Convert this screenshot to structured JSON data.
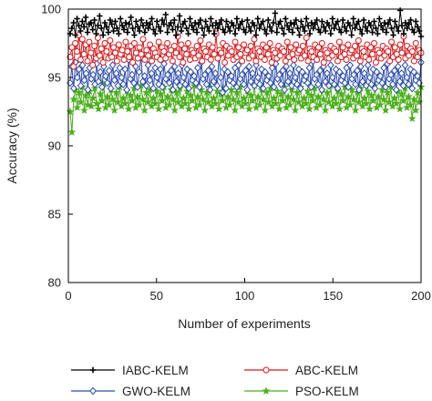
{
  "chart_data": {
    "type": "line",
    "title": "",
    "xlabel": "Number of experiments",
    "ylabel": "Accuracy (%)",
    "xlim": [
      0,
      200
    ],
    "ylim": [
      80,
      100
    ],
    "xticks": [
      0,
      50,
      100,
      150,
      200
    ],
    "yticks": [
      80,
      85,
      90,
      95,
      100
    ],
    "grid": false,
    "legend_position": "bottom",
    "x_start": 1,
    "x_end": 200,
    "series": [
      {
        "name": "IABC-KELM",
        "color": "#000000",
        "marker": "plus",
        "values": [
          98.2,
          98.6,
          99.0,
          98.1,
          99.3,
          98.8,
          98.4,
          99.1,
          98.7,
          99.4,
          98.3,
          98.9,
          99.0,
          98.5,
          99.2,
          98.2,
          98.8,
          99.5,
          98.6,
          98.1,
          99.0,
          98.7,
          98.3,
          99.2,
          98.9,
          98.4,
          99.1,
          98.6,
          98.2,
          99.3,
          98.8,
          98.5,
          99.0,
          98.3,
          98.9,
          99.4,
          98.6,
          98.1,
          99.1,
          98.7,
          98.4,
          99.2,
          98.8,
          98.3,
          99.0,
          98.6,
          98.9,
          99.3,
          98.5,
          98.2,
          99.1,
          98.7,
          98.4,
          99.2,
          98.9,
          99.6,
          98.3,
          98.8,
          99.0,
          98.5,
          99.2,
          98.1,
          98.7,
          99.5,
          98.4,
          98.9,
          99.1,
          98.6,
          98.2,
          99.3,
          98.8,
          98.5,
          99.0,
          98.3,
          98.9,
          99.2,
          98.6,
          98.1,
          99.1,
          98.7,
          98.4,
          99.3,
          98.8,
          98.2,
          99.0,
          98.6,
          98.9,
          99.2,
          98.5,
          98.3,
          99.1,
          98.7,
          98.4,
          99.0,
          98.8,
          98.2,
          99.3,
          98.6,
          98.9,
          99.1,
          98.5,
          98.3,
          99.2,
          98.7,
          98.4,
          99.0,
          98.8,
          98.1,
          99.3,
          98.6,
          98.9,
          99.1,
          98.5,
          98.2,
          99.2,
          98.7,
          98.4,
          99.0,
          99.7,
          98.3,
          98.9,
          99.1,
          98.6,
          98.2,
          99.3,
          98.8,
          98.5,
          99.0,
          98.3,
          98.9,
          99.2,
          98.6,
          98.1,
          99.1,
          98.7,
          98.4,
          99.3,
          98.8,
          98.2,
          99.0,
          98.6,
          98.9,
          99.2,
          98.5,
          98.3,
          99.1,
          98.7,
          98.4,
          99.0,
          98.8,
          98.2,
          99.3,
          98.6,
          98.9,
          99.1,
          98.5,
          98.3,
          99.2,
          98.7,
          98.4,
          99.0,
          98.8,
          98.1,
          99.3,
          98.6,
          98.9,
          99.1,
          98.5,
          98.2,
          99.2,
          98.7,
          98.4,
          99.0,
          98.8,
          98.3,
          99.1,
          98.6,
          98.2,
          99.3,
          98.8,
          98.5,
          99.0,
          98.3,
          98.9,
          99.2,
          98.6,
          98.1,
          99.1,
          98.7,
          98.4,
          99.9,
          98.8,
          98.2,
          99.0,
          98.6,
          98.9,
          99.2,
          98.5,
          98.3,
          99.1,
          98.7,
          98.4,
          98.0
        ]
      },
      {
        "name": "ABC-KELM",
        "color": "#d7191c",
        "marker": "circle",
        "values": [
          96.5,
          97.2,
          95.8,
          97.5,
          96.9,
          98.1,
          96.3,
          97.8,
          96.7,
          97.4,
          96.2,
          97.6,
          96.8,
          95.9,
          97.3,
          96.4,
          97.9,
          96.6,
          97.1,
          96.1,
          97.5,
          96.9,
          96.4,
          97.7,
          96.5,
          97.2,
          96.8,
          96.2,
          97.4,
          96.7,
          97.0,
          96.3,
          97.6,
          96.9,
          96.5,
          97.3,
          96.1,
          97.5,
          96.8,
          96.4,
          97.2,
          96.7,
          97.8,
          96.3,
          97.0,
          96.6,
          97.4,
          96.2,
          97.1,
          96.8,
          96.5,
          97.6,
          96.3,
          97.2,
          96.9,
          96.4,
          97.5,
          96.7,
          97.0,
          96.2,
          97.3,
          96.8,
          98.0,
          96.5,
          97.4,
          96.1,
          97.1,
          96.7,
          97.5,
          96.3,
          97.0,
          96.8,
          96.4,
          97.3,
          96.6,
          97.7,
          96.2,
          97.1,
          96.9,
          96.5,
          97.4,
          96.3,
          97.2,
          96.7,
          98.2,
          96.4,
          97.0,
          96.8,
          97.5,
          96.1,
          97.3,
          96.6,
          97.1,
          96.9,
          96.3,
          97.6,
          96.5,
          97.2,
          96.7,
          96.2,
          97.4,
          96.8,
          97.0,
          96.4,
          97.3,
          96.6,
          97.8,
          96.2,
          97.1,
          96.9,
          96.5,
          97.4,
          96.3,
          97.2,
          96.7,
          97.5,
          96.1,
          97.0,
          96.8,
          96.4,
          97.3,
          96.6,
          97.1,
          96.9,
          96.2,
          97.6,
          96.5,
          97.2,
          96.7,
          96.3,
          97.4,
          96.8,
          97.0,
          96.4,
          97.3,
          96.6,
          97.9,
          96.2,
          97.1,
          96.9,
          96.5,
          97.4,
          96.3,
          97.2,
          96.7,
          97.5,
          96.1,
          97.0,
          96.8,
          96.4,
          97.3,
          96.6,
          97.1,
          96.9,
          96.2,
          97.6,
          96.5,
          97.2,
          96.7,
          96.3,
          97.4,
          96.8,
          97.0,
          96.4,
          97.3,
          96.6,
          97.7,
          96.2,
          97.1,
          96.9,
          96.5,
          97.4,
          96.3,
          97.2,
          96.7,
          97.5,
          96.1,
          97.0,
          96.8,
          96.4,
          97.3,
          96.6,
          97.1,
          96.9,
          96.2,
          97.6,
          96.5,
          97.2,
          96.7,
          96.3,
          97.4,
          96.8,
          98.0,
          96.4,
          97.3,
          96.6,
          97.1,
          96.9,
          96.2,
          97.5,
          96.5,
          97.0,
          96.8
        ]
      },
      {
        "name": "GWO-KELM",
        "color": "#2b4cb0",
        "marker": "diamond",
        "values": [
          94.6,
          95.8,
          94.2,
          96.1,
          95.0,
          95.6,
          94.4,
          95.9,
          94.8,
          95.3,
          94.1,
          95.7,
          94.9,
          95.2,
          94.5,
          96.0,
          94.7,
          95.4,
          94.3,
          95.8,
          95.1,
          94.6,
          95.5,
          94.2,
          95.9,
          94.8,
          95.3,
          94.4,
          95.7,
          95.0,
          94.5,
          95.6,
          94.1,
          96.3,
          94.9,
          95.2,
          94.6,
          95.8,
          94.3,
          95.4,
          96.5,
          94.7,
          95.1,
          94.4,
          95.9,
          94.8,
          95.3,
          94.2,
          95.7,
          95.0,
          94.5,
          95.6,
          94.3,
          96.0,
          94.9,
          95.2,
          94.6,
          95.5,
          94.1,
          95.8,
          94.7,
          95.3,
          94.4,
          95.9,
          95.0,
          94.5,
          95.6,
          94.2,
          95.4,
          94.8,
          95.1,
          94.6,
          95.7,
          94.3,
          96.1,
          94.9,
          95.2,
          94.5,
          95.5,
          94.1,
          95.8,
          94.7,
          95.3,
          94.4,
          96.6,
          95.0,
          93.9,
          95.6,
          94.2,
          95.4,
          94.8,
          95.1,
          94.6,
          95.7,
          94.3,
          95.9,
          94.9,
          95.2,
          94.5,
          95.5,
          94.1,
          95.8,
          94.7,
          95.3,
          94.4,
          95.9,
          95.0,
          94.5,
          95.6,
          94.2,
          95.4,
          94.8,
          95.1,
          94.6,
          95.7,
          94.3,
          96.0,
          94.9,
          95.2,
          94.5,
          95.5,
          94.1,
          95.8,
          94.7,
          95.3,
          94.4,
          95.9,
          95.0,
          94.5,
          95.6,
          94.2,
          95.4,
          94.8,
          95.1,
          94.6,
          95.7,
          94.3,
          96.2,
          94.9,
          95.2,
          94.5,
          95.5,
          94.1,
          95.8,
          94.7,
          95.3,
          94.4,
          95.9,
          95.0,
          94.5,
          95.6,
          94.2,
          95.4,
          94.8,
          95.1,
          94.6,
          95.7,
          94.3,
          95.9,
          94.9,
          95.2,
          94.5,
          95.5,
          94.1,
          95.8,
          94.7,
          95.3,
          94.4,
          95.9,
          95.0,
          94.5,
          95.6,
          94.2,
          95.4,
          94.8,
          95.1,
          94.6,
          95.7,
          94.3,
          96.0,
          94.9,
          95.2,
          94.5,
          95.5,
          94.1,
          95.8,
          94.7,
          95.3,
          94.4,
          95.9,
          95.0,
          94.5,
          95.6,
          94.2,
          95.4,
          94.8,
          95.1,
          94.6,
          96.1
        ]
      },
      {
        "name": "PSO-KELM",
        "color": "#4caf1c",
        "marker": "star",
        "values": [
          92.5,
          91.0,
          93.4,
          94.1,
          92.8,
          93.9,
          93.2,
          94.3,
          92.6,
          93.7,
          93.0,
          94.0,
          92.9,
          93.5,
          94.2,
          93.1,
          92.7,
          93.8,
          93.3,
          94.5,
          92.8,
          93.6,
          93.0,
          94.1,
          93.4,
          92.6,
          93.9,
          93.2,
          94.3,
          92.9,
          93.5,
          93.1,
          94.0,
          92.7,
          93.7,
          93.3,
          94.2,
          92.8,
          93.6,
          93.0,
          94.4,
          93.4,
          92.6,
          93.9,
          93.2,
          94.1,
          92.9,
          93.5,
          93.1,
          94.0,
          92.7,
          93.8,
          93.3,
          94.3,
          92.8,
          93.6,
          93.0,
          94.1,
          93.4,
          92.6,
          93.9,
          93.2,
          94.2,
          92.9,
          93.5,
          93.1,
          94.0,
          92.7,
          93.7,
          93.3,
          94.4,
          92.8,
          93.6,
          93.0,
          94.1,
          93.4,
          92.6,
          93.9,
          93.2,
          94.3,
          92.9,
          93.5,
          93.1,
          94.0,
          92.7,
          93.8,
          93.3,
          94.2,
          92.8,
          93.6,
          93.0,
          94.1,
          93.4,
          92.6,
          93.9,
          93.2,
          94.3,
          92.9,
          93.5,
          93.1,
          94.0,
          92.7,
          93.7,
          93.3,
          94.4,
          92.8,
          93.6,
          93.0,
          94.1,
          93.4,
          92.6,
          93.9,
          93.2,
          94.2,
          92.9,
          93.5,
          93.1,
          94.0,
          92.7,
          93.8,
          93.3,
          94.3,
          92.8,
          93.6,
          93.0,
          94.1,
          93.4,
          92.6,
          93.9,
          93.2,
          94.3,
          92.9,
          93.5,
          93.1,
          94.0,
          92.7,
          93.7,
          93.3,
          94.2,
          92.8,
          93.6,
          93.0,
          94.1,
          93.4,
          92.6,
          93.9,
          93.2,
          94.4,
          92.9,
          93.5,
          93.1,
          94.0,
          92.7,
          93.8,
          93.3,
          94.3,
          92.8,
          93.6,
          93.0,
          94.1,
          93.4,
          92.6,
          93.9,
          93.2,
          94.2,
          92.9,
          93.5,
          93.1,
          94.0,
          92.7,
          93.7,
          93.3,
          94.4,
          92.8,
          93.6,
          93.0,
          94.1,
          93.4,
          92.6,
          93.9,
          93.2,
          94.3,
          92.9,
          93.5,
          93.1,
          94.0,
          92.7,
          93.8,
          93.3,
          94.2,
          92.8,
          93.6,
          93.0,
          92.0,
          93.4,
          92.6,
          93.9,
          93.2,
          94.3
        ]
      }
    ]
  }
}
